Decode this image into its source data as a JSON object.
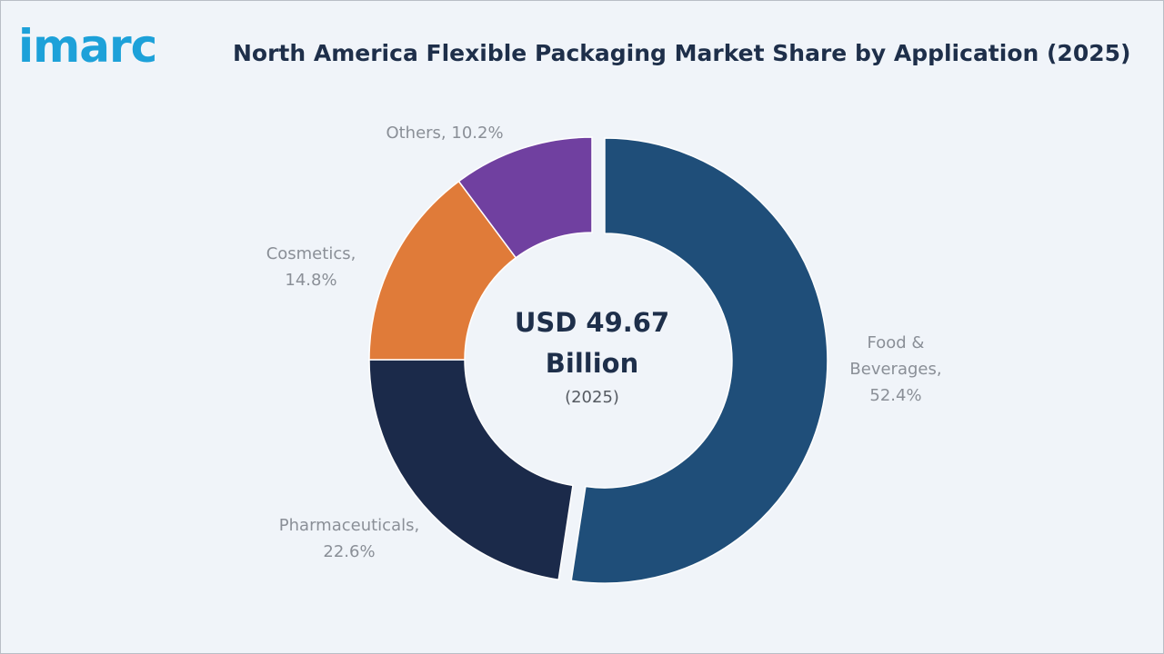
{
  "brand": {
    "logo_text": "imarc",
    "logo_color": "#1da1d9"
  },
  "chart_data": {
    "type": "pie",
    "title": "North America Flexible Packaging Market Share by Application (2025)",
    "unit": "%",
    "center_label": {
      "line1": "USD 49.67",
      "line2": "Billion",
      "line3": "(2025)"
    },
    "slices": [
      {
        "label_lines": [
          "Food &",
          "Beverages,",
          "52.4%"
        ],
        "value": 52.4,
        "color": "#1f4e79",
        "exploded": true
      },
      {
        "label_lines": [
          "Pharmaceuticals,",
          "22.6%"
        ],
        "value": 22.6,
        "color": "#1b2a4a"
      },
      {
        "label_lines": [
          "Cosmetics,",
          "14.8%"
        ],
        "value": 14.8,
        "color": "#e07b39"
      },
      {
        "label_lines": [
          "Others, 10.2%"
        ],
        "value": 10.2,
        "color": "#7040a0"
      }
    ]
  }
}
